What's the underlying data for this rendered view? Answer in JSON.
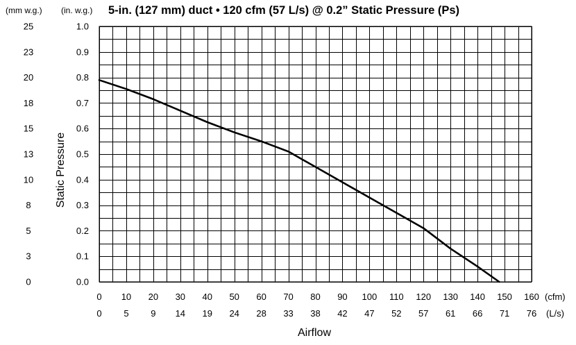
{
  "chart_data": {
    "type": "line",
    "title": "5-in. (127 mm) duct • 120 cfm (57 L/s) @ 0.2” Static Pressure (Ps)",
    "xlabel": "Airflow",
    "ylabel": "Static Pressure",
    "x_unit_primary": "(cfm)",
    "x_unit_secondary": "(L/s)",
    "y_unit_primary": "(in. w.g.)",
    "y_unit_secondary": "(mm w.g.)",
    "xlim": [
      0,
      160
    ],
    "ylim": [
      0,
      1.0
    ],
    "x_ticks": [
      "0",
      "10",
      "20",
      "30",
      "40",
      "50",
      "60",
      "70",
      "80",
      "90",
      "100",
      "110",
      "120",
      "130",
      "140",
      "150",
      "160"
    ],
    "x_ticks_secondary": [
      "0",
      "5",
      "9",
      "14",
      "19",
      "24",
      "28",
      "33",
      "38",
      "42",
      "47",
      "52",
      "57",
      "61",
      "66",
      "71",
      "76"
    ],
    "y_ticks": [
      "0.0",
      "0.1",
      "0.2",
      "0.3",
      "0.4",
      "0.5",
      "0.6",
      "0.7",
      "0.8",
      "0.9",
      "1.0"
    ],
    "y_ticks_secondary": [
      "0",
      "3",
      "5",
      "8",
      "10",
      "13",
      "15",
      "18",
      "20",
      "23",
      "25"
    ],
    "grid": true,
    "series": [
      {
        "x": [
          0,
          10,
          20,
          30,
          40,
          50,
          60,
          70,
          75,
          80,
          90,
          100,
          110,
          120,
          130,
          140,
          148
        ],
        "y": [
          0.79,
          0.755,
          0.715,
          0.67,
          0.625,
          0.585,
          0.55,
          0.51,
          0.48,
          0.45,
          0.39,
          0.33,
          0.27,
          0.21,
          0.13,
          0.06,
          0.0
        ]
      }
    ]
  }
}
